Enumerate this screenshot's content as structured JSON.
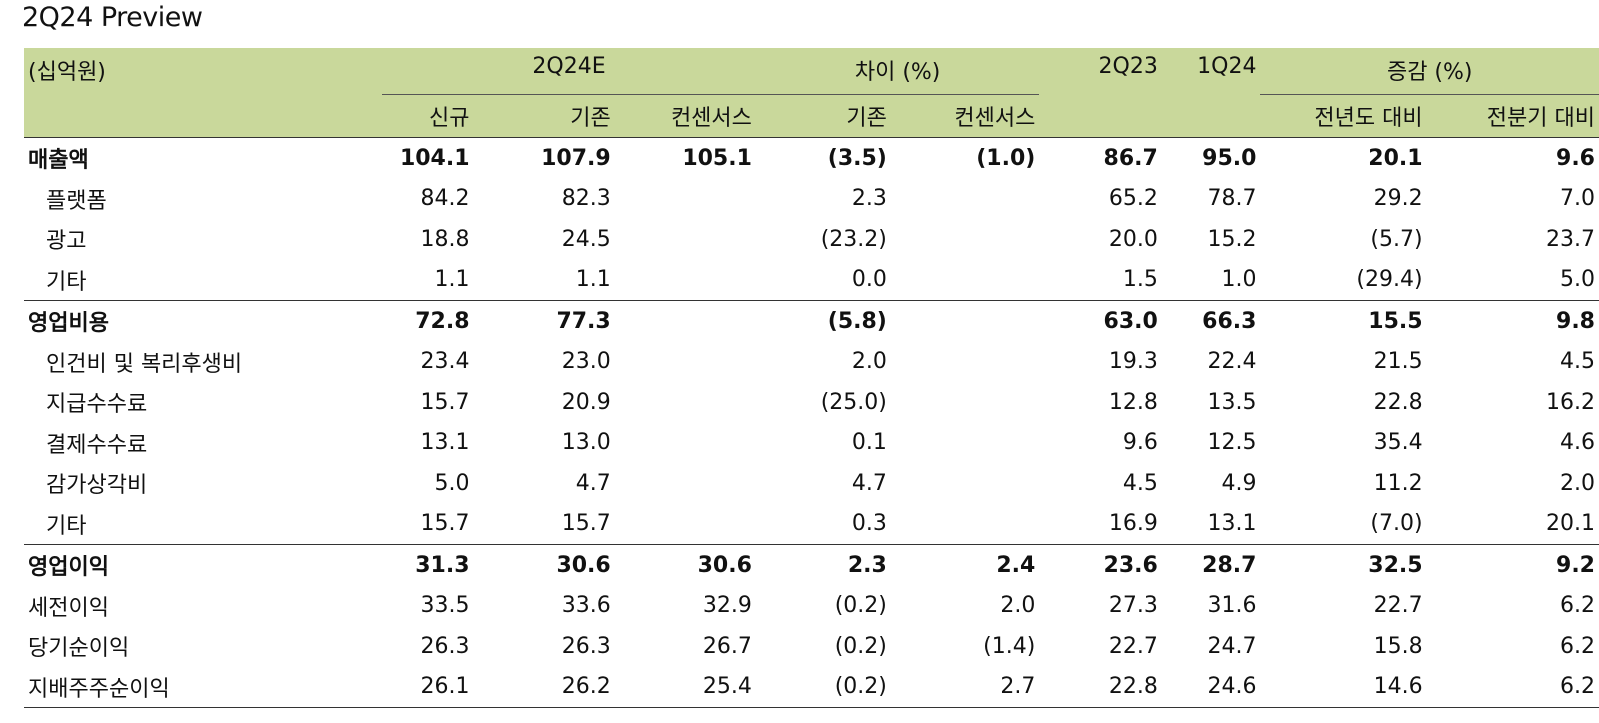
{
  "title": "2Q24 Preview",
  "header": {
    "unit": "(십억원)",
    "group_2q24e": "2Q24E",
    "group_diff": "차이 (%)",
    "col_2q23": "2Q23",
    "col_1q24": "1Q24",
    "group_change": "증감 (%)",
    "sub_new": "신규",
    "sub_old": "기존",
    "sub_consensus": "컨센서스",
    "sub_diff_old": "기존",
    "sub_diff_consensus": "컨센서스",
    "sub_yoy": "전년도 대비",
    "sub_qoq": "전분기 대비"
  },
  "rows": [
    {
      "label": "매출액",
      "new": "104.1",
      "old": "107.9",
      "cons": "105.1",
      "d_old": "(3.5)",
      "d_cons": "(1.0)",
      "y2q23": "86.7",
      "q1q24": "95.0",
      "yoy": "20.1",
      "qoq": "9.6"
    },
    {
      "label": "플랫폼",
      "new": "84.2",
      "old": "82.3",
      "cons": "",
      "d_old": "2.3",
      "d_cons": "",
      "y2q23": "65.2",
      "q1q24": "78.7",
      "yoy": "29.2",
      "qoq": "7.0"
    },
    {
      "label": "광고",
      "new": "18.8",
      "old": "24.5",
      "cons": "",
      "d_old": "(23.2)",
      "d_cons": "",
      "y2q23": "20.0",
      "q1q24": "15.2",
      "yoy": "(5.7)",
      "qoq": "23.7"
    },
    {
      "label": "기타",
      "new": "1.1",
      "old": "1.1",
      "cons": "",
      "d_old": "0.0",
      "d_cons": "",
      "y2q23": "1.5",
      "q1q24": "1.0",
      "yoy": "(29.4)",
      "qoq": "5.0"
    },
    {
      "label": "영업비용",
      "new": "72.8",
      "old": "77.3",
      "cons": "",
      "d_old": "(5.8)",
      "d_cons": "",
      "y2q23": "63.0",
      "q1q24": "66.3",
      "yoy": "15.5",
      "qoq": "9.8"
    },
    {
      "label": "인건비 및 복리후생비",
      "new": "23.4",
      "old": "23.0",
      "cons": "",
      "d_old": "2.0",
      "d_cons": "",
      "y2q23": "19.3",
      "q1q24": "22.4",
      "yoy": "21.5",
      "qoq": "4.5"
    },
    {
      "label": "지급수수료",
      "new": "15.7",
      "old": "20.9",
      "cons": "",
      "d_old": "(25.0)",
      "d_cons": "",
      "y2q23": "12.8",
      "q1q24": "13.5",
      "yoy": "22.8",
      "qoq": "16.2"
    },
    {
      "label": "결제수수료",
      "new": "13.1",
      "old": "13.0",
      "cons": "",
      "d_old": "0.1",
      "d_cons": "",
      "y2q23": "9.6",
      "q1q24": "12.5",
      "yoy": "35.4",
      "qoq": "4.6"
    },
    {
      "label": "감가상각비",
      "new": "5.0",
      "old": "4.7",
      "cons": "",
      "d_old": "4.7",
      "d_cons": "",
      "y2q23": "4.5",
      "q1q24": "4.9",
      "yoy": "11.2",
      "qoq": "2.0"
    },
    {
      "label": "기타",
      "new": "15.7",
      "old": "15.7",
      "cons": "",
      "d_old": "0.3",
      "d_cons": "",
      "y2q23": "16.9",
      "q1q24": "13.1",
      "yoy": "(7.0)",
      "qoq": "20.1"
    },
    {
      "label": "영업이익",
      "new": "31.3",
      "old": "30.6",
      "cons": "30.6",
      "d_old": "2.3",
      "d_cons": "2.4",
      "y2q23": "23.6",
      "q1q24": "28.7",
      "yoy": "32.5",
      "qoq": "9.2"
    },
    {
      "label": "세전이익",
      "new": "33.5",
      "old": "33.6",
      "cons": "32.9",
      "d_old": "(0.2)",
      "d_cons": "2.0",
      "y2q23": "27.3",
      "q1q24": "31.6",
      "yoy": "22.7",
      "qoq": "6.2"
    },
    {
      "label": "당기순이익",
      "new": "26.3",
      "old": "26.3",
      "cons": "26.7",
      "d_old": "(0.2)",
      "d_cons": "(1.4)",
      "y2q23": "22.7",
      "q1q24": "24.7",
      "yoy": "15.8",
      "qoq": "6.2"
    },
    {
      "label": "지배주주순이익",
      "new": "26.1",
      "old": "26.2",
      "cons": "25.4",
      "d_old": "(0.2)",
      "d_cons": "2.7",
      "y2q23": "22.8",
      "q1q24": "24.6",
      "yoy": "14.6",
      "qoq": "6.2"
    }
  ]
}
